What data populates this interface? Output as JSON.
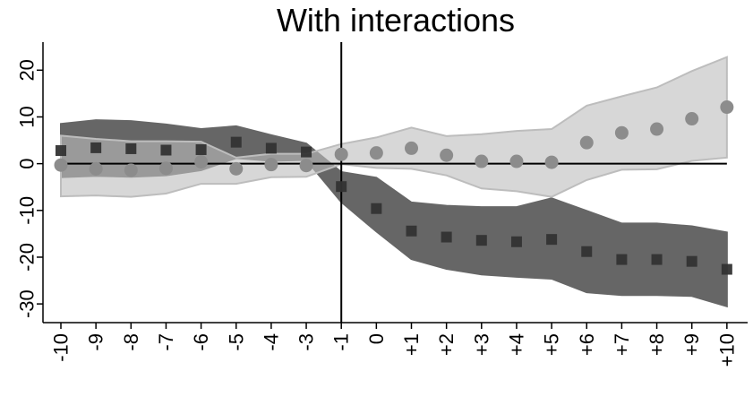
{
  "chart_data": {
    "type": "scatter",
    "title": "With interactions",
    "x_tick_labels": [
      "-10",
      "-9",
      "-8",
      "-7",
      "-6",
      "-5",
      "-4",
      "-3",
      "-1",
      "0",
      "+1",
      "+2",
      "+3",
      "+4",
      "+5",
      "+6",
      "+7",
      "+8",
      "+9",
      "+10"
    ],
    "y_ticks": [
      20,
      10,
      0,
      -10,
      -20,
      -30
    ],
    "ylim": [
      -34,
      26
    ],
    "reference_lines": {
      "horizontal_y": 0,
      "vertical_at_x_label": "-1"
    },
    "series": [
      {
        "marker": "square",
        "color": "#333333",
        "band_color": "#666666",
        "values": [
          2.8,
          3.4,
          3.2,
          2.9,
          3.0,
          4.6,
          3.3,
          2.5,
          -4.9,
          -9.6,
          -14.4,
          -15.7,
          -16.4,
          -16.7,
          -16.2,
          -18.8,
          -20.5,
          -20.5,
          -20.9,
          -22.6
        ],
        "ci_upper": [
          8.5,
          9.3,
          9.1,
          8.4,
          7.4,
          8.0,
          6.1,
          4.3,
          -1.8,
          -3.0,
          -8.3,
          -9.0,
          -9.3,
          -9.3,
          -7.4,
          -10.1,
          -12.8,
          -12.8,
          -13.4,
          -14.7
        ],
        "ci_lower": [
          -2.9,
          -2.6,
          -2.8,
          -2.5,
          -1.4,
          1.2,
          0.6,
          0.8,
          -8.2,
          -14.5,
          -20.4,
          -22.5,
          -23.7,
          -24.2,
          -24.6,
          -27.5,
          -28.1,
          -28.1,
          -28.3,
          -30.5
        ]
      },
      {
        "marker": "circle",
        "color": "#8c8c8c",
        "band_color": "#bdbdbd",
        "values": [
          -0.3,
          -1.1,
          -1.4,
          -1.0,
          0.4,
          -1.1,
          -0.2,
          -0.4,
          2.0,
          2.3,
          3.3,
          1.8,
          0.5,
          0.5,
          0.3,
          4.5,
          6.6,
          7.4,
          9.6,
          12.1
        ],
        "ci_upper": [
          6.0,
          5.3,
          4.8,
          4.8,
          4.7,
          1.3,
          2.1,
          2.1,
          4.2,
          5.6,
          7.7,
          5.9,
          6.3,
          7.0,
          7.4,
          12.4,
          14.4,
          16.3,
          19.8,
          22.8
        ],
        "ci_lower": [
          -7.0,
          -6.8,
          -7.1,
          -6.4,
          -4.3,
          -4.3,
          -2.9,
          -2.8,
          -0.1,
          -0.9,
          -1.1,
          -2.5,
          -5.3,
          -5.9,
          -7.1,
          -3.5,
          -1.3,
          -1.2,
          0.6,
          1.3
        ]
      }
    ]
  }
}
